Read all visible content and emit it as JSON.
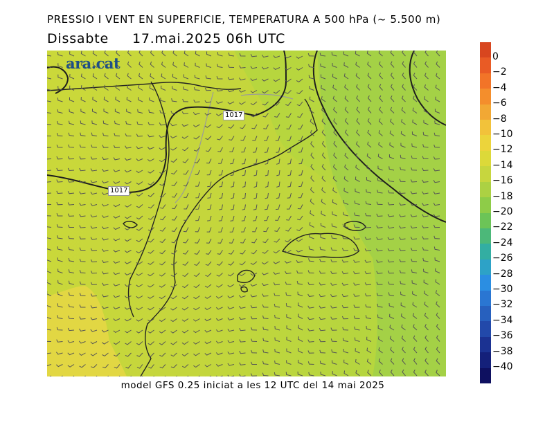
{
  "header": {
    "title": "PRESSIO I VENT EN SUPERFICIE, TEMPERATURA A 500 hPa (~ 5.500 m)",
    "day": "Dissabte",
    "datetime": "17.mai.2025 06h UTC"
  },
  "footer": {
    "model_info": "model GFS 0.25 iniciat a les 12 UTC del 14 mai 2025"
  },
  "map": {
    "logo": "ara.cat",
    "isobar_labels": [
      "1017",
      "1017"
    ],
    "fill_colors": {
      "light": "#cbd83a",
      "mid": "#b7d63e",
      "deep": "#a2d046",
      "warm": "#e2d743"
    }
  },
  "colorbar": {
    "labels": [
      "0",
      "−2",
      "−4",
      "−6",
      "−8",
      "−10",
      "−12",
      "−14",
      "−16",
      "−18",
      "−20",
      "−22",
      "−24",
      "−26",
      "−28",
      "−30",
      "−32",
      "−34",
      "−36",
      "−38",
      "−40"
    ],
    "colors": [
      "#d8461f",
      "#e95b25",
      "#f27428",
      "#f48e2c",
      "#f2a834",
      "#f2c23a",
      "#ecd43b",
      "#dcd939",
      "#c7d63e",
      "#acd143",
      "#8ecc48",
      "#6cc457",
      "#4cb879",
      "#33aea2",
      "#2da2c7",
      "#2b8ee2",
      "#2a76d2",
      "#2760be",
      "#2249aa",
      "#1b3292",
      "#14207a",
      "#0e1060"
    ]
  }
}
